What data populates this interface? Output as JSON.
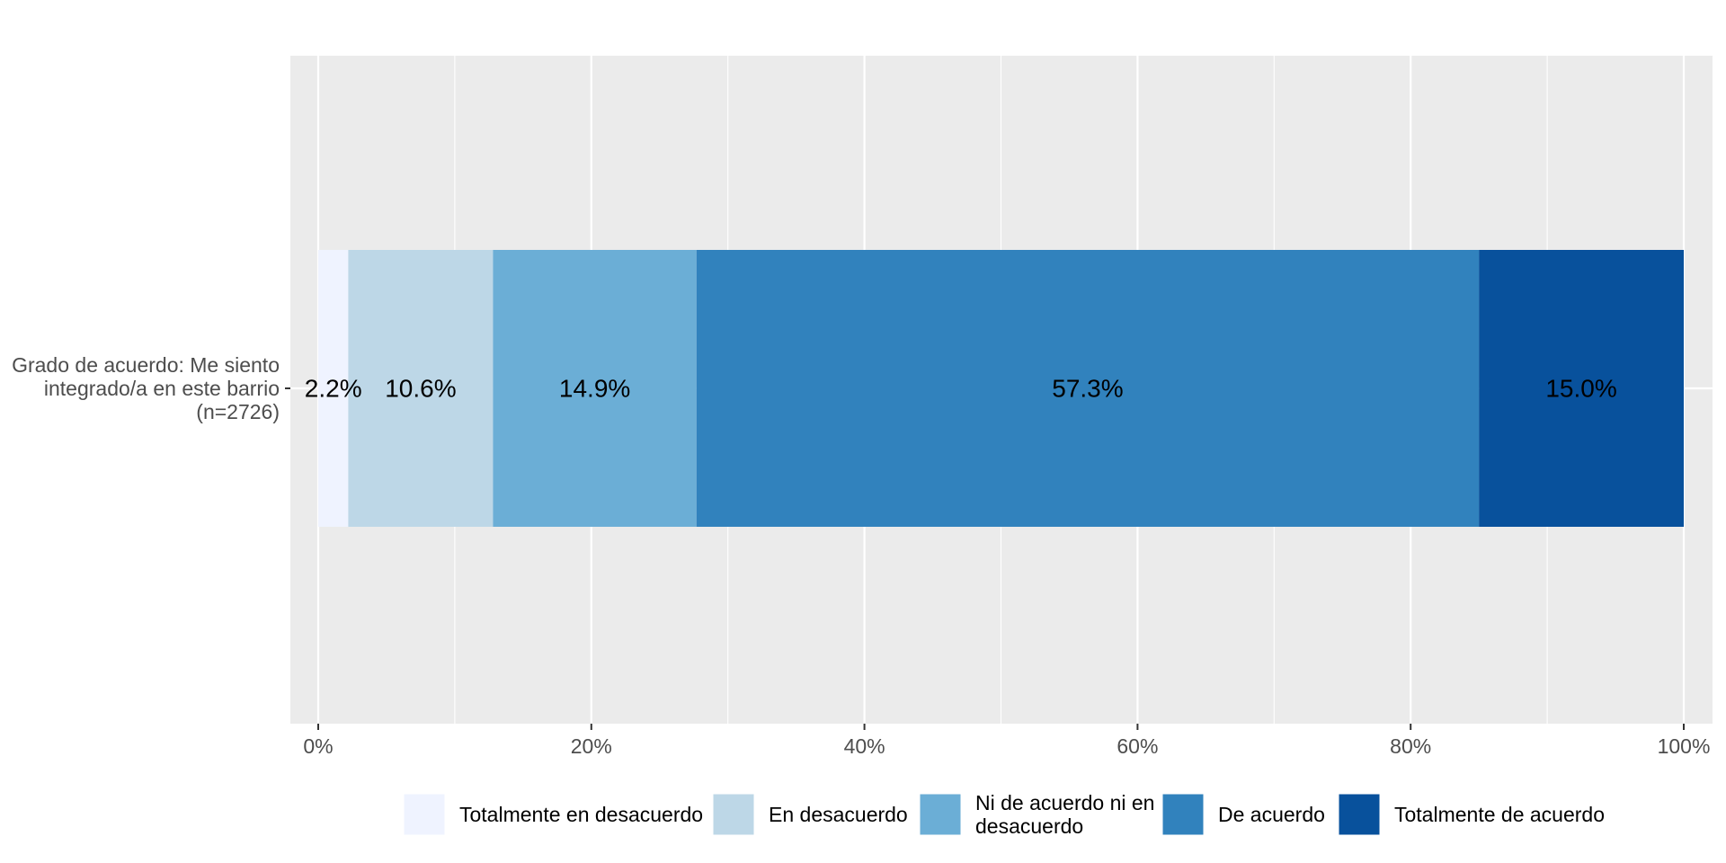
{
  "chart_data": {
    "type": "bar",
    "orientation": "horizontal",
    "stacked": true,
    "categories": [
      "Grado de acuerdo: Me siento integrado/a en este barrio (n=2726)"
    ],
    "category_label_lines": [
      "Grado de acuerdo: Me siento",
      "integrado/a en este barrio",
      "(n=2726)"
    ],
    "series": [
      {
        "name": "Totalmente en desacuerdo",
        "values": [
          2.2
        ],
        "label": "2.2%",
        "color": "#eff3ff"
      },
      {
        "name": "En desacuerdo",
        "values": [
          10.6
        ],
        "label": "10.6%",
        "color": "#bdd7e7"
      },
      {
        "name": "Ni de acuerdo ni en desacuerdo",
        "legend_lines": [
          "Ni de acuerdo ni en",
          "desacuerdo"
        ],
        "values": [
          14.9
        ],
        "label": "14.9%",
        "color": "#6baed6"
      },
      {
        "name": "De acuerdo",
        "values": [
          57.3
        ],
        "label": "57.3%",
        "color": "#3182bd"
      },
      {
        "name": "Totalmente de acuerdo",
        "values": [
          15.0
        ],
        "label": "15.0%",
        "color": "#08519c"
      }
    ],
    "xlim": [
      0,
      100
    ],
    "x_ticks": [
      0,
      20,
      40,
      60,
      80,
      100
    ],
    "x_tick_labels": [
      "0%",
      "20%",
      "40%",
      "60%",
      "80%",
      "100%"
    ],
    "title": "",
    "xlabel": "",
    "ylabel": "",
    "grid": true,
    "legend_position": "bottom",
    "panel_background": "#ebebeb"
  }
}
